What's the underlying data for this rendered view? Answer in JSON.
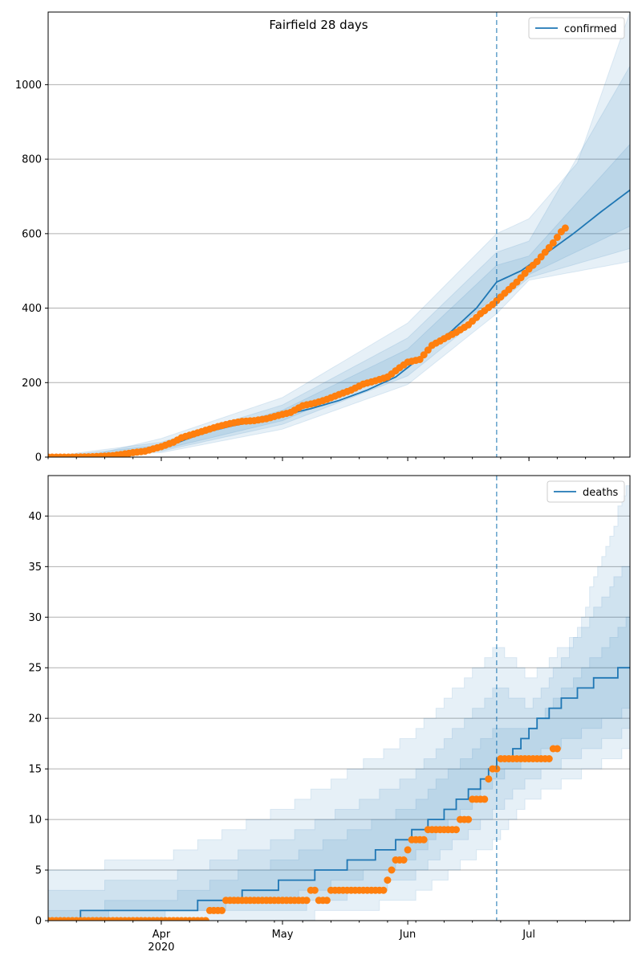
{
  "colors": {
    "line": "#1f77b4",
    "band": "#1f77b4",
    "observed": "#ff7f0e",
    "grid": "#b0b0b0",
    "vline": "#1f77b4"
  },
  "chart_data": [
    {
      "type": "line",
      "title": "Fairfield 28 days",
      "x_type": "date",
      "x_ticks": [
        {
          "date": "2020-04-01",
          "label": "Apr",
          "sublabel": "2020"
        },
        {
          "date": "2020-05-01",
          "label": "May"
        },
        {
          "date": "2020-06-01",
          "label": "Jun"
        },
        {
          "date": "2020-07-01",
          "label": "Jul"
        }
      ],
      "xlim": [
        "2020-03-04",
        "2020-07-26"
      ],
      "ylim": [
        0,
        1195
      ],
      "y_ticks": [
        0,
        200,
        400,
        600,
        800,
        1000
      ],
      "grid": "horizontal",
      "legend": "top-right",
      "forecast_start": "2020-06-23",
      "series": [
        {
          "name": "confirmed",
          "kind": "model-median",
          "points": [
            [
              "2020-03-04",
              0
            ],
            [
              "2020-03-14",
              1
            ],
            [
              "2020-03-20",
              5
            ],
            [
              "2020-03-25",
              12
            ],
            [
              "2020-03-30",
              20
            ],
            [
              "2020-04-04",
              35
            ],
            [
              "2020-04-09",
              55
            ],
            [
              "2020-04-14",
              72
            ],
            [
              "2020-04-19",
              85
            ],
            [
              "2020-04-24",
              95
            ],
            [
              "2020-05-01",
              112
            ],
            [
              "2020-05-08",
              130
            ],
            [
              "2020-05-15",
              152
            ],
            [
              "2020-05-22",
              180
            ],
            [
              "2020-05-29",
              215
            ],
            [
              "2020-06-05",
              275
            ],
            [
              "2020-06-12",
              340
            ],
            [
              "2020-06-18",
              400
            ],
            [
              "2020-06-23",
              470
            ],
            [
              "2020-06-29",
              500
            ],
            [
              "2020-07-05",
              545
            ],
            [
              "2020-07-12",
              600
            ],
            [
              "2020-07-19",
              660
            ],
            [
              "2020-07-26",
              717
            ]
          ]
        },
        {
          "name": "observed confirmed",
          "kind": "observed",
          "points": [
            [
              "2020-03-04",
              0
            ],
            [
              "2020-03-10",
              0
            ],
            [
              "2020-03-15",
              1
            ],
            [
              "2020-03-20",
              4
            ],
            [
              "2020-03-25",
              12
            ],
            [
              "2020-03-28",
              16
            ],
            [
              "2020-04-01",
              28
            ],
            [
              "2020-04-04",
              40
            ],
            [
              "2020-04-06",
              52
            ],
            [
              "2020-04-09",
              62
            ],
            [
              "2020-04-12",
              72
            ],
            [
              "2020-04-15",
              82
            ],
            [
              "2020-04-18",
              90
            ],
            [
              "2020-04-21",
              96
            ],
            [
              "2020-04-24",
              98
            ],
            [
              "2020-04-27",
              103
            ],
            [
              "2020-04-30",
              112
            ],
            [
              "2020-05-03",
              120
            ],
            [
              "2020-05-06",
              138
            ],
            [
              "2020-05-09",
              145
            ],
            [
              "2020-05-12",
              155
            ],
            [
              "2020-05-15",
              168
            ],
            [
              "2020-05-18",
              180
            ],
            [
              "2020-05-21",
              196
            ],
            [
              "2020-05-24",
              205
            ],
            [
              "2020-05-27",
              215
            ],
            [
              "2020-05-30",
              240
            ],
            [
              "2020-06-01",
              255
            ],
            [
              "2020-06-04",
              262
            ],
            [
              "2020-06-07",
              300
            ],
            [
              "2020-06-10",
              318
            ],
            [
              "2020-06-13",
              335
            ],
            [
              "2020-06-16",
              355
            ],
            [
              "2020-06-19",
              385
            ],
            [
              "2020-06-22",
              410
            ],
            [
              "2020-06-25",
              440
            ],
            [
              "2020-06-28",
              470
            ],
            [
              "2020-07-01",
              505
            ],
            [
              "2020-07-03",
              525
            ],
            [
              "2020-07-05",
              550
            ],
            [
              "2020-07-07",
              575
            ],
            [
              "2020-07-09",
              605
            ],
            [
              "2020-07-10",
              615
            ]
          ]
        }
      ],
      "bands": [
        {
          "lower": [
            [
              "2020-03-04",
              0
            ],
            [
              "2020-04-01",
              12
            ],
            [
              "2020-05-01",
              75
            ],
            [
              "2020-06-01",
              195
            ],
            [
              "2020-06-23",
              385
            ],
            [
              "2020-07-01",
              475
            ],
            [
              "2020-07-26",
              525
            ]
          ],
          "upper": [
            [
              "2020-03-04",
              2
            ],
            [
              "2020-03-15",
              6
            ],
            [
              "2020-04-01",
              50
            ],
            [
              "2020-05-01",
              160
            ],
            [
              "2020-06-01",
              360
            ],
            [
              "2020-06-23",
              600
            ],
            [
              "2020-07-01",
              640
            ],
            [
              "2020-07-13",
              790
            ],
            [
              "2020-07-26",
              1195
            ]
          ]
        },
        {
          "lower": [
            [
              "2020-03-04",
              0
            ],
            [
              "2020-04-01",
              16
            ],
            [
              "2020-05-01",
              88
            ],
            [
              "2020-06-01",
              218
            ],
            [
              "2020-06-23",
              410
            ],
            [
              "2020-07-01",
              482
            ],
            [
              "2020-07-26",
              560
            ]
          ],
          "upper": [
            [
              "2020-03-04",
              1
            ],
            [
              "2020-04-01",
              40
            ],
            [
              "2020-05-01",
              140
            ],
            [
              "2020-06-01",
              320
            ],
            [
              "2020-06-23",
              550
            ],
            [
              "2020-07-01",
              580
            ],
            [
              "2020-07-26",
              1050
            ]
          ]
        },
        {
          "lower": [
            [
              "2020-03-04",
              0
            ],
            [
              "2020-04-01",
              20
            ],
            [
              "2020-05-01",
              98
            ],
            [
              "2020-06-01",
              238
            ],
            [
              "2020-06-23",
              435
            ],
            [
              "2020-07-01",
              490
            ],
            [
              "2020-07-26",
              620
            ]
          ],
          "upper": [
            [
              "2020-03-04",
              0
            ],
            [
              "2020-04-01",
              32
            ],
            [
              "2020-05-01",
              126
            ],
            [
              "2020-06-01",
              290
            ],
            [
              "2020-06-23",
              515
            ],
            [
              "2020-07-01",
              540
            ],
            [
              "2020-07-26",
              840
            ]
          ]
        }
      ]
    },
    {
      "type": "line",
      "title": "",
      "x_type": "date",
      "x_ticks": [
        {
          "date": "2020-04-01",
          "label": "Apr",
          "sublabel": "2020"
        },
        {
          "date": "2020-05-01",
          "label": "May"
        },
        {
          "date": "2020-06-01",
          "label": "Jun"
        },
        {
          "date": "2020-07-01",
          "label": "Jul"
        }
      ],
      "xlim": [
        "2020-03-04",
        "2020-07-26"
      ],
      "ylim": [
        0,
        44
      ],
      "y_ticks": [
        0,
        5,
        10,
        15,
        20,
        25,
        30,
        35,
        40
      ],
      "grid": "horizontal",
      "legend": "top-right",
      "forecast_start": "2020-06-23",
      "series": [
        {
          "name": "deaths",
          "kind": "model-median",
          "step": true,
          "points": [
            [
              "2020-03-04",
              0
            ],
            [
              "2020-03-12",
              1
            ],
            [
              "2020-04-10",
              2
            ],
            [
              "2020-04-21",
              3
            ],
            [
              "2020-04-30",
              4
            ],
            [
              "2020-05-09",
              5
            ],
            [
              "2020-05-17",
              6
            ],
            [
              "2020-05-24",
              7
            ],
            [
              "2020-05-29",
              8
            ],
            [
              "2020-06-02",
              9
            ],
            [
              "2020-06-06",
              10
            ],
            [
              "2020-06-10",
              11
            ],
            [
              "2020-06-13",
              12
            ],
            [
              "2020-06-16",
              13
            ],
            [
              "2020-06-19",
              14
            ],
            [
              "2020-06-21",
              15
            ],
            [
              "2020-06-23",
              16
            ],
            [
              "2020-06-25",
              16
            ],
            [
              "2020-06-27",
              17
            ],
            [
              "2020-06-29",
              18
            ],
            [
              "2020-07-01",
              19
            ],
            [
              "2020-07-03",
              20
            ],
            [
              "2020-07-06",
              21
            ],
            [
              "2020-07-09",
              22
            ],
            [
              "2020-07-13",
              23
            ],
            [
              "2020-07-17",
              24
            ],
            [
              "2020-07-23",
              25
            ],
            [
              "2020-07-26",
              25
            ]
          ]
        },
        {
          "name": "observed deaths",
          "kind": "observed",
          "step": true,
          "points": [
            [
              "2020-03-04",
              0
            ],
            [
              "2020-04-13",
              1
            ],
            [
              "2020-04-17",
              2
            ],
            [
              "2020-05-08",
              3
            ],
            [
              "2020-05-10",
              2
            ],
            [
              "2020-05-13",
              3
            ],
            [
              "2020-05-27",
              4
            ],
            [
              "2020-05-28",
              5
            ],
            [
              "2020-05-29",
              6
            ],
            [
              "2020-06-01",
              7
            ],
            [
              "2020-06-02",
              8
            ],
            [
              "2020-06-06",
              9
            ],
            [
              "2020-06-14",
              10
            ],
            [
              "2020-06-17",
              12
            ],
            [
              "2020-06-21",
              14
            ],
            [
              "2020-06-22",
              15
            ],
            [
              "2020-06-24",
              16
            ],
            [
              "2020-07-07",
              17
            ],
            [
              "2020-07-08",
              17
            ]
          ]
        }
      ],
      "bands": [
        {
          "lower": [
            [
              "2020-03-04",
              0
            ],
            [
              "2020-05-01",
              0
            ],
            [
              "2020-06-01",
              2
            ],
            [
              "2020-06-23",
              8
            ],
            [
              "2020-07-01",
              12
            ],
            [
              "2020-07-26",
              17
            ]
          ],
          "upper": [
            [
              "2020-03-04",
              5
            ],
            [
              "2020-04-01",
              6
            ],
            [
              "2020-05-01",
              11
            ],
            [
              "2020-06-01",
              18
            ],
            [
              "2020-06-23",
              27
            ],
            [
              "2020-07-01",
              24
            ],
            [
              "2020-07-12",
              28
            ],
            [
              "2020-07-26",
              44
            ]
          ]
        },
        {
          "lower": [
            [
              "2020-03-04",
              0
            ],
            [
              "2020-05-01",
              1
            ],
            [
              "2020-06-01",
              4
            ],
            [
              "2020-06-23",
              11
            ],
            [
              "2020-07-01",
              14
            ],
            [
              "2020-07-26",
              19
            ]
          ],
          "upper": [
            [
              "2020-03-04",
              3
            ],
            [
              "2020-04-01",
              4
            ],
            [
              "2020-05-01",
              8
            ],
            [
              "2020-06-01",
              14
            ],
            [
              "2020-06-23",
              23
            ],
            [
              "2020-07-01",
              21
            ],
            [
              "2020-07-26",
              36
            ]
          ]
        },
        {
          "lower": [
            [
              "2020-03-04",
              0
            ],
            [
              "2020-05-01",
              2
            ],
            [
              "2020-06-01",
              6
            ],
            [
              "2020-06-23",
              14
            ],
            [
              "2020-07-01",
              16
            ],
            [
              "2020-07-26",
              21
            ]
          ],
          "upper": [
            [
              "2020-03-04",
              1
            ],
            [
              "2020-04-01",
              2
            ],
            [
              "2020-05-01",
              6
            ],
            [
              "2020-06-01",
              11
            ],
            [
              "2020-06-23",
              19
            ],
            [
              "2020-07-01",
              19
            ],
            [
              "2020-07-26",
              30
            ]
          ]
        }
      ]
    }
  ]
}
